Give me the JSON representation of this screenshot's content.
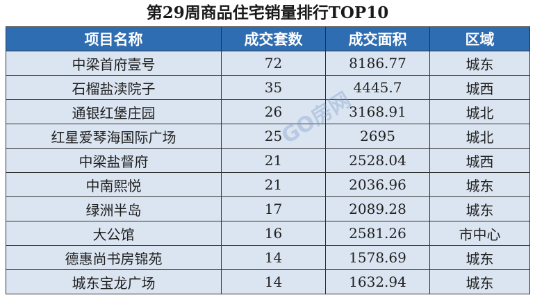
{
  "title": "第29周商品住宅销量排行TOP10",
  "table": {
    "headers": [
      "项目名称",
      "成交套数",
      "成交面积",
      "区域"
    ],
    "rows": [
      [
        "中梁首府壹号",
        "72",
        "8186.77",
        "城东"
      ],
      [
        "石榴盐渎院子",
        "35",
        "4445.7",
        "城西"
      ],
      [
        "通银红堡庄园",
        "26",
        "3168.91",
        "城北"
      ],
      [
        "红星爱琴海国际广场",
        "25",
        "2695",
        "城北"
      ],
      [
        "中梁盐督府",
        "21",
        "2528.04",
        "城西"
      ],
      [
        "中南熙悦",
        "21",
        "2036.96",
        "城东"
      ],
      [
        "绿洲半岛",
        "17",
        "2089.28",
        "城东"
      ],
      [
        "大公馆",
        "16",
        "2581.26",
        "市中心"
      ],
      [
        "德惠尚书房锦苑",
        "14",
        "1578.69",
        "城东"
      ],
      [
        "城东宝龙广场",
        "14",
        "1632.94",
        "城东"
      ]
    ]
  },
  "watermark": "GO房网",
  "colors": {
    "header_bg": "#2f6db2",
    "row_bg": "#dbe5f1",
    "header_text": "#ffffff"
  }
}
